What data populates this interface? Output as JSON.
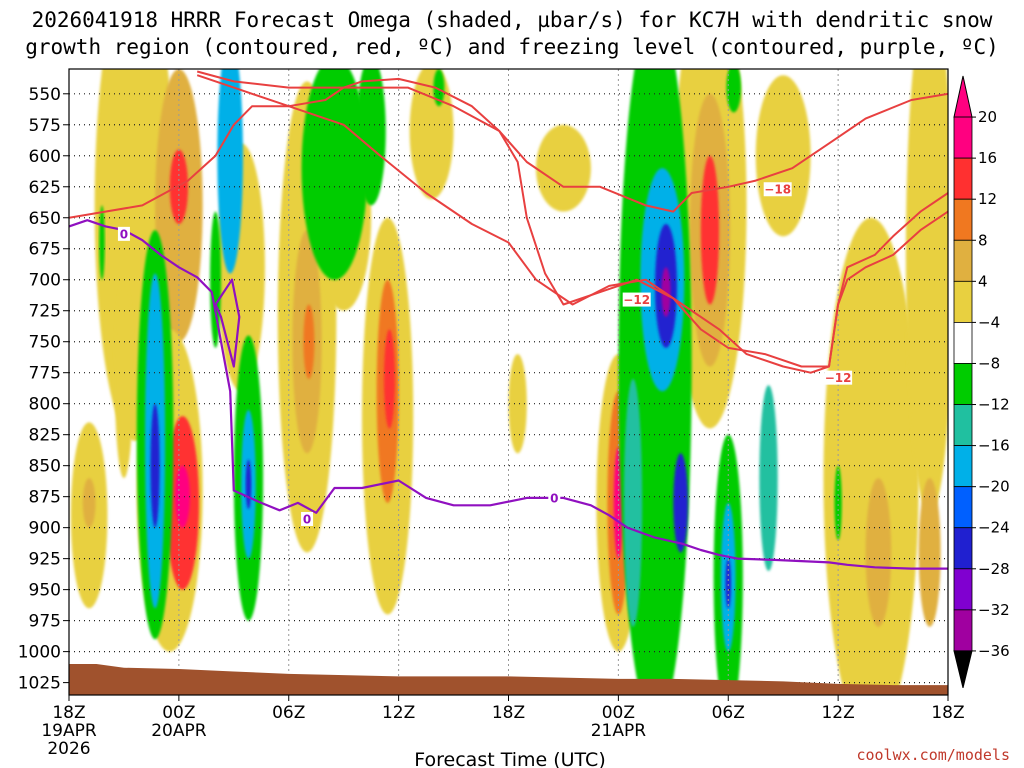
{
  "chart_data": {
    "type": "heatmap",
    "title_lines": [
      "2026041918 HRRR Forecast Omega (shaded, µbar/s) for KC7H with dendritic snow",
      "growth region (contoured, red, ºC) and freezing level (contoured, purple, ºC)"
    ],
    "xlabel": "Forecast Time (UTC)",
    "credit": "coolwx.com/models",
    "x_range_hours": [
      0,
      48
    ],
    "y_range_hpa": [
      530,
      1035
    ],
    "x_ticks": [
      {
        "hour": 0,
        "label": "18Z",
        "sub": [
          "19APR",
          "2026"
        ]
      },
      {
        "hour": 6,
        "label": "00Z",
        "sub": [
          "20APR"
        ]
      },
      {
        "hour": 12,
        "label": "06Z",
        "sub": []
      },
      {
        "hour": 18,
        "label": "12Z",
        "sub": []
      },
      {
        "hour": 24,
        "label": "18Z",
        "sub": []
      },
      {
        "hour": 30,
        "label": "00Z",
        "sub": [
          "21APR"
        ]
      },
      {
        "hour": 36,
        "label": "06Z",
        "sub": []
      },
      {
        "hour": 42,
        "label": "12Z",
        "sub": []
      },
      {
        "hour": 48,
        "label": "18Z",
        "sub": []
      }
    ],
    "y_ticks": [
      550,
      575,
      600,
      625,
      650,
      675,
      700,
      725,
      750,
      775,
      800,
      825,
      850,
      875,
      900,
      925,
      950,
      975,
      1000,
      1025
    ],
    "colorbar": {
      "labels": [
        "20",
        "16",
        "12",
        "8",
        "4",
        "−4",
        "−8",
        "−12",
        "−16",
        "−20",
        "−24",
        "−28",
        "−32",
        "−36"
      ],
      "bins": [
        {
          "color": "#ff0080"
        },
        {
          "color": "#ff3030"
        },
        {
          "color": "#f07820"
        },
        {
          "color": "#e0b040"
        },
        {
          "color": "#e8d040"
        },
        {
          "color": "#ffffff"
        },
        {
          "color": "#00cc00"
        },
        {
          "color": "#20c0a0"
        },
        {
          "color": "#00b0e8"
        },
        {
          "color": "#0060ff"
        },
        {
          "color": "#2020d0"
        },
        {
          "color": "#8000d0"
        },
        {
          "color": "#a000a0"
        },
        {
          "color": "#a0a0a0"
        }
      ]
    },
    "omega_cells": [
      {
        "hour": 3.6,
        "hpa": 640,
        "dh": 2.2,
        "dp": 380,
        "value": 6
      },
      {
        "hour": 6.0,
        "hpa": 640,
        "dh": 1.3,
        "dp": 220,
        "value": 10
      },
      {
        "hour": 6.0,
        "hpa": 625,
        "dh": 0.5,
        "dp": 60,
        "value": 18
      },
      {
        "hour": 5.5,
        "hpa": 870,
        "dh": 1.8,
        "dp": 260,
        "value": 6
      },
      {
        "hour": 6.2,
        "hpa": 880,
        "dh": 0.9,
        "dp": 140,
        "value": 16
      },
      {
        "hour": 6.2,
        "hpa": 875,
        "dh": 0.4,
        "dp": 50,
        "value": 21
      },
      {
        "hour": 1.1,
        "hpa": 890,
        "dh": 1.0,
        "dp": 150,
        "value": 6
      },
      {
        "hour": 1.1,
        "hpa": 880,
        "dh": 0.35,
        "dp": 40,
        "value": 10
      },
      {
        "hour": 3.0,
        "hpa": 780,
        "dh": 0.5,
        "dp": 160,
        "value": 6
      },
      {
        "hour": 9.4,
        "hpa": 690,
        "dh": 1.3,
        "dp": 200,
        "value": 6
      },
      {
        "hour": 13.0,
        "hpa": 730,
        "dh": 1.6,
        "dp": 380,
        "value": 6
      },
      {
        "hour": 13.0,
        "hpa": 750,
        "dh": 0.8,
        "dp": 180,
        "value": 10
      },
      {
        "hour": 13.1,
        "hpa": 750,
        "dh": 0.3,
        "dp": 60,
        "value": 14
      },
      {
        "hour": 17.4,
        "hpa": 810,
        "dh": 1.4,
        "dp": 320,
        "value": 6
      },
      {
        "hour": 17.4,
        "hpa": 790,
        "dh": 0.6,
        "dp": 180,
        "value": 12
      },
      {
        "hour": 17.5,
        "hpa": 780,
        "dh": 0.3,
        "dp": 80,
        "value": 18
      },
      {
        "hour": 15.0,
        "hpa": 650,
        "dh": 1.5,
        "dp": 150,
        "value": 6
      },
      {
        "hour": 19.8,
        "hpa": 580,
        "dh": 1.2,
        "dp": 110,
        "value": 6
      },
      {
        "hour": 24.5,
        "hpa": 800,
        "dh": 0.5,
        "dp": 80,
        "value": 6
      },
      {
        "hour": 27.0,
        "hpa": 610,
        "dh": 1.5,
        "dp": 70,
        "value": 6
      },
      {
        "hour": 30.0,
        "hpa": 880,
        "dh": 1.2,
        "dp": 240,
        "value": 6
      },
      {
        "hour": 30.0,
        "hpa": 880,
        "dh": 0.6,
        "dp": 180,
        "value": 14
      },
      {
        "hour": 30.0,
        "hpa": 880,
        "dh": 0.25,
        "dp": 90,
        "value": 21
      },
      {
        "hour": 31.8,
        "hpa": 920,
        "dh": 0.5,
        "dp": 120,
        "value": 14
      },
      {
        "hour": 35.0,
        "hpa": 640,
        "dh": 2.0,
        "dp": 360,
        "value": 6
      },
      {
        "hour": 35.0,
        "hpa": 660,
        "dh": 1.1,
        "dp": 220,
        "value": 10
      },
      {
        "hour": 35.0,
        "hpa": 660,
        "dh": 0.5,
        "dp": 120,
        "value": 18
      },
      {
        "hour": 39.0,
        "hpa": 600,
        "dh": 1.5,
        "dp": 130,
        "value": 6
      },
      {
        "hour": 43.8,
        "hpa": 860,
        "dh": 2.6,
        "dp": 420,
        "value": 6
      },
      {
        "hour": 44.2,
        "hpa": 920,
        "dh": 0.7,
        "dp": 120,
        "value": 10
      },
      {
        "hour": 47.0,
        "hpa": 680,
        "dh": 1.3,
        "dp": 420,
        "value": 6
      },
      {
        "hour": 47.0,
        "hpa": 920,
        "dh": 0.6,
        "dp": 120,
        "value": 10
      },
      {
        "hour": 1.8,
        "hpa": 670,
        "dh": 0.15,
        "dp": 60,
        "value": -6
      },
      {
        "hour": 4.7,
        "hpa": 825,
        "dh": 1.0,
        "dp": 330,
        "value": -6
      },
      {
        "hour": 4.7,
        "hpa": 830,
        "dh": 0.55,
        "dp": 270,
        "value": -12
      },
      {
        "hour": 4.7,
        "hpa": 850,
        "dh": 0.25,
        "dp": 100,
        "value": -22
      },
      {
        "hour": 9.8,
        "hpa": 860,
        "dh": 0.8,
        "dp": 230,
        "value": -6
      },
      {
        "hour": 9.8,
        "hpa": 865,
        "dh": 0.4,
        "dp": 120,
        "value": -14
      },
      {
        "hour": 9.8,
        "hpa": 865,
        "dh": 0.15,
        "dp": 40,
        "value": -22
      },
      {
        "hour": 8.8,
        "hpa": 600,
        "dh": 0.7,
        "dp": 190,
        "value": -12
      },
      {
        "hour": 8.0,
        "hpa": 700,
        "dh": 0.3,
        "dp": 110,
        "value": -6
      },
      {
        "hour": 14.5,
        "hpa": 610,
        "dh": 1.8,
        "dp": 180,
        "value": -6
      },
      {
        "hour": 16.5,
        "hpa": 580,
        "dh": 0.8,
        "dp": 120,
        "value": -6
      },
      {
        "hour": 20.2,
        "hpa": 545,
        "dh": 0.3,
        "dp": 30,
        "value": -6
      },
      {
        "hour": 32.0,
        "hpa": 770,
        "dh": 2.0,
        "dp": 580,
        "value": -6
      },
      {
        "hour": 32.4,
        "hpa": 700,
        "dh": 1.2,
        "dp": 180,
        "value": -14
      },
      {
        "hour": 32.6,
        "hpa": 705,
        "dh": 0.6,
        "dp": 100,
        "value": -22
      },
      {
        "hour": 32.6,
        "hpa": 710,
        "dh": 0.25,
        "dp": 40,
        "value": -30
      },
      {
        "hour": 33.4,
        "hpa": 880,
        "dh": 0.4,
        "dp": 80,
        "value": -20
      },
      {
        "hour": 30.8,
        "hpa": 880,
        "dh": 0.5,
        "dp": 200,
        "value": -10
      },
      {
        "hour": 36.0,
        "hpa": 940,
        "dh": 0.8,
        "dp": 230,
        "value": -6
      },
      {
        "hour": 36.0,
        "hpa": 940,
        "dh": 0.4,
        "dp": 120,
        "value": -14
      },
      {
        "hour": 36.0,
        "hpa": 945,
        "dh": 0.15,
        "dp": 40,
        "value": -22
      },
      {
        "hour": 38.2,
        "hpa": 860,
        "dh": 0.5,
        "dp": 150,
        "value": -8
      },
      {
        "hour": 42.0,
        "hpa": 880,
        "dh": 0.2,
        "dp": 60,
        "value": -6
      },
      {
        "hour": 36.3,
        "hpa": 545,
        "dh": 0.4,
        "dp": 40,
        "value": -6
      }
    ],
    "dgz_minus12": [
      [
        0.0,
        650
      ],
      [
        4.0,
        640
      ],
      [
        6.5,
        620
      ],
      [
        8.0,
        600
      ],
      [
        9.0,
        575
      ],
      [
        10.0,
        560
      ],
      [
        12.0,
        560
      ],
      [
        14.0,
        555
      ],
      [
        15.0,
        545
      ],
      [
        16.0,
        540
      ],
      [
        18.0,
        538
      ],
      [
        20.0,
        545
      ],
      [
        22.0,
        560
      ],
      [
        23.5,
        580
      ],
      [
        24.5,
        605
      ],
      [
        25.0,
        650
      ],
      [
        26.0,
        695
      ],
      [
        27.0,
        720
      ],
      [
        29.0,
        710
      ],
      [
        31.0,
        700
      ],
      [
        33.0,
        715
      ],
      [
        34.5,
        740
      ],
      [
        36.0,
        755
      ],
      [
        38.0,
        760
      ],
      [
        40.0,
        770
      ],
      [
        41.5,
        770
      ],
      [
        42.0,
        720
      ],
      [
        42.5,
        690
      ],
      [
        44.0,
        680
      ],
      [
        45.0,
        665
      ],
      [
        46.5,
        645
      ],
      [
        48.0,
        630
      ]
    ],
    "dgz_minus18": [
      [
        7.0,
        535
      ],
      [
        9.0,
        545
      ],
      [
        12.0,
        560
      ],
      [
        15.0,
        575
      ],
      [
        17.0,
        600
      ],
      [
        19.5,
        630
      ],
      [
        22.0,
        655
      ],
      [
        24.0,
        670
      ],
      [
        25.5,
        700
      ],
      [
        27.5,
        720
      ],
      [
        29.5,
        705
      ],
      [
        31.5,
        700
      ],
      [
        33.5,
        720
      ],
      [
        35.5,
        740
      ],
      [
        37.0,
        760
      ],
      [
        39.0,
        770
      ],
      [
        40.5,
        775
      ],
      [
        41.5,
        770
      ],
      [
        42.0,
        720
      ],
      [
        42.5,
        700
      ],
      [
        43.5,
        690
      ],
      [
        45.0,
        680
      ],
      [
        46.5,
        660
      ],
      [
        48.0,
        645
      ]
    ],
    "dgz_minus12_upper": [
      [
        7.0,
        532
      ],
      [
        9.0,
        540
      ],
      [
        12.0,
        545
      ],
      [
        15.5,
        545
      ],
      [
        18.5,
        545
      ],
      [
        21.0,
        560
      ],
      [
        23.5,
        580
      ],
      [
        25.0,
        605
      ],
      [
        27.0,
        625
      ],
      [
        29.0,
        625
      ],
      [
        31.5,
        640
      ],
      [
        33.0,
        645
      ],
      [
        34.0,
        630
      ],
      [
        36.0,
        625
      ],
      [
        37.5,
        620
      ],
      [
        39.5,
        610
      ],
      [
        41.5,
        590
      ],
      [
        43.5,
        570
      ],
      [
        46.0,
        555
      ],
      [
        48.0,
        550
      ]
    ],
    "dgz_labels": [
      {
        "text": "−18",
        "hour": 38.7,
        "hpa": 627
      },
      {
        "text": "−12",
        "hour": 31.0,
        "hpa": 716
      },
      {
        "text": "−12",
        "hour": 42.0,
        "hpa": 779
      }
    ],
    "freezing_level": [
      [
        0.0,
        657
      ],
      [
        1.0,
        652
      ],
      [
        2.0,
        657
      ],
      [
        3.0,
        660
      ],
      [
        4.0,
        668
      ],
      [
        5.0,
        680
      ],
      [
        6.0,
        690
      ],
      [
        7.0,
        698
      ],
      [
        7.8,
        710
      ],
      [
        8.8,
        790
      ],
      [
        9.0,
        870
      ],
      [
        10.5,
        880
      ],
      [
        11.5,
        886
      ],
      [
        12.5,
        880
      ],
      [
        13.5,
        888
      ],
      [
        14.5,
        868
      ],
      [
        16.0,
        868
      ],
      [
        18.0,
        862
      ],
      [
        19.5,
        876
      ],
      [
        21.0,
        882
      ],
      [
        23.0,
        882
      ],
      [
        25.0,
        876
      ],
      [
        27.0,
        876
      ],
      [
        28.5,
        882
      ],
      [
        29.5,
        890
      ],
      [
        30.5,
        900
      ],
      [
        32.0,
        908
      ],
      [
        33.5,
        913
      ],
      [
        34.5,
        918
      ],
      [
        35.5,
        922
      ],
      [
        36.5,
        925
      ],
      [
        38.5,
        926
      ],
      [
        40.0,
        927
      ],
      [
        41.5,
        928
      ],
      [
        42.5,
        930
      ],
      [
        44.0,
        932
      ],
      [
        46.0,
        933
      ],
      [
        48.0,
        933
      ]
    ],
    "fzl_loop": [
      [
        8.0,
        720
      ],
      [
        8.9,
        700
      ],
      [
        9.3,
        730
      ],
      [
        9.0,
        770
      ],
      [
        8.3,
        730
      ]
    ],
    "fzl_labels": [
      {
        "text": "0",
        "hour": 3.0,
        "hpa": 663
      },
      {
        "text": "0",
        "hour": 13.0,
        "hpa": 893
      },
      {
        "text": "0",
        "hour": 26.5,
        "hpa": 876
      }
    ],
    "terrain_top_hpa": [
      [
        0.0,
        1010
      ],
      [
        1.5,
        1010
      ],
      [
        3.0,
        1013
      ],
      [
        6.0,
        1014
      ],
      [
        9.0,
        1016
      ],
      [
        12.0,
        1018
      ],
      [
        15.0,
        1019
      ],
      [
        18.0,
        1020
      ],
      [
        21.0,
        1020
      ],
      [
        24.0,
        1020
      ],
      [
        27.0,
        1021
      ],
      [
        30.0,
        1022
      ],
      [
        33.0,
        1022
      ],
      [
        36.0,
        1023
      ],
      [
        39.0,
        1024
      ],
      [
        42.0,
        1026
      ],
      [
        45.0,
        1027
      ],
      [
        48.0,
        1027
      ]
    ]
  }
}
